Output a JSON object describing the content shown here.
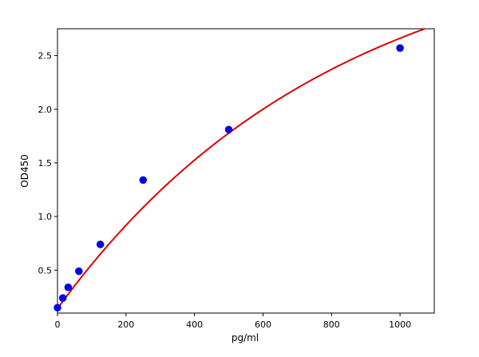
{
  "chart_data": {
    "type": "scatter",
    "title": "",
    "xlabel": "pg/ml",
    "ylabel": "OD450",
    "xlim": [
      0,
      1100
    ],
    "ylim": [
      0.1,
      2.75
    ],
    "x_ticks": [
      0,
      200,
      400,
      600,
      800,
      1000
    ],
    "y_ticks": [
      0.5,
      1.0,
      1.5,
      2.0,
      2.5
    ],
    "x_tick_labels": [
      "0",
      "200",
      "400",
      "600",
      "800",
      "1000"
    ],
    "y_tick_labels": [
      "0.5",
      "1.0",
      "1.5",
      "2.0",
      "2.5"
    ],
    "grid": false,
    "series": [
      {
        "type": "scatter",
        "color": "#0000ff",
        "x": [
          0,
          15.6,
          31.25,
          62.5,
          125,
          250,
          500,
          1000
        ],
        "y": [
          0.15,
          0.24,
          0.34,
          0.49,
          0.74,
          1.34,
          1.81,
          2.57
        ]
      },
      {
        "type": "line",
        "color": "#dd0000",
        "fit": {
          "x0": 0,
          "y0": 0.142,
          "a": 3.56,
          "k": 0.00123
        }
      }
    ]
  }
}
